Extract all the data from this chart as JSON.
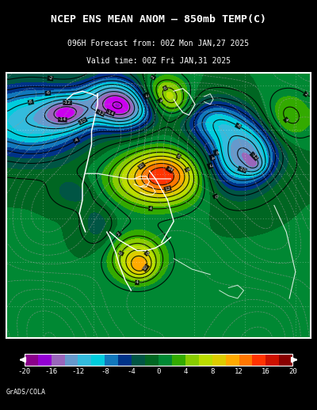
{
  "title_line1": "NCEP ENS MEAN ANOM – 850mb TEMP(C)",
  "title_line2": "096H Forecast from: 00Z Mon JAN,27 2025",
  "title_line3": "Valid time: 00Z Fri JAN,31 2025",
  "credit": "GrADS/COLA",
  "colorbar_values": [
    -20,
    -16,
    -12,
    -8,
    -4,
    0,
    4,
    8,
    12,
    16,
    20
  ],
  "colorbar_colors": [
    "#8B008B",
    "#9400D3",
    "#8B3FCC",
    "#6080CC",
    "#00BFFF",
    "#00CED1",
    "#1E90FF",
    "#003399",
    "#005544",
    "#006622",
    "#00AA00",
    "#55CC00",
    "#AADD00",
    "#DDCC00",
    "#FFB300",
    "#FF7700",
    "#FF4400",
    "#CC1100",
    "#8B0000"
  ],
  "bg_color": "#000000",
  "fig_width": 4.0,
  "fig_height": 5.18
}
